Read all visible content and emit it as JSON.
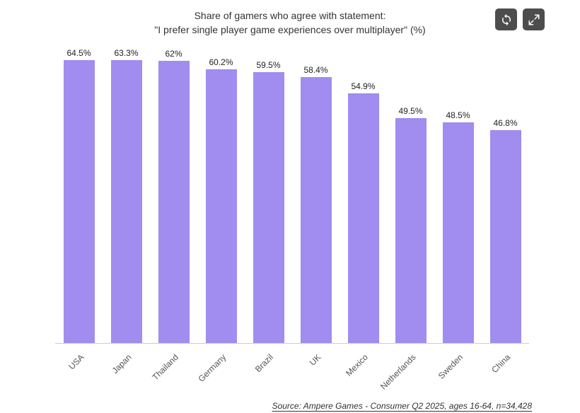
{
  "title": {
    "line1": "Share of gamers who agree with statement:",
    "line2": "\"I prefer single player game experiences over multiplayer\" (%)"
  },
  "toolbar": {
    "buttons": [
      {
        "name": "refresh",
        "icon": "refresh-icon"
      },
      {
        "name": "expand",
        "icon": "expand-icon"
      }
    ],
    "button_color": "#4d4d4d",
    "icon_color": "#ffffff"
  },
  "chart_data": {
    "type": "bar",
    "title": "Share of gamers who agree with statement: \"I prefer single player game experiences over multiplayer\" (%)",
    "categories": [
      "USA",
      "Japan",
      "Thailand",
      "Germany",
      "Brazil",
      "UK",
      "Mexico",
      "Netherlands",
      "Sweden",
      "China"
    ],
    "values": [
      64.5,
      63.3,
      62,
      60.2,
      59.5,
      58.4,
      54.9,
      49.5,
      48.5,
      46.8
    ],
    "value_labels": [
      "64.5%",
      "63.3%",
      "62%",
      "60.2%",
      "59.5%",
      "58.4%",
      "54.9%",
      "49.5%",
      "48.5%",
      "46.8%"
    ],
    "xlabel": "",
    "ylabel": "",
    "ylim": [
      0,
      65
    ],
    "bar_color": "#a18cf0",
    "grid": false,
    "legend": false
  },
  "footer": {
    "source": "Source: Ampere Games - Consumer Q2 2025, ages 16-64, n=34,428"
  }
}
